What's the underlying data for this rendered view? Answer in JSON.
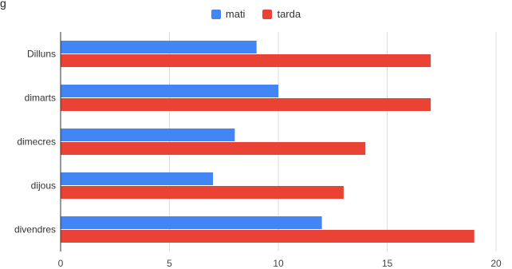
{
  "chart_data": {
    "type": "bar",
    "orientation": "horizontal",
    "title_fragment": "g",
    "categories": [
      "Dilluns",
      "dimarts",
      "dimecres",
      "dijous",
      "divendres"
    ],
    "series": [
      {
        "name": "mati",
        "color": "#4285f4",
        "values": [
          9,
          10,
          8,
          7,
          12
        ]
      },
      {
        "name": "tarda",
        "color": "#ea4335",
        "values": [
          17,
          17,
          14,
          13,
          19
        ]
      }
    ],
    "xlim": [
      0,
      20
    ],
    "x_ticks": [
      "0",
      "5",
      "10",
      "15",
      "20"
    ],
    "grid": "vertical",
    "legend_position": "top-center"
  }
}
